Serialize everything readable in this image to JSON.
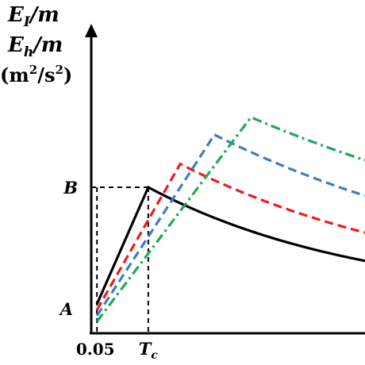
{
  "chart_data": {
    "type": "line",
    "title": "",
    "ylabel_lines": [
      {
        "var": "E",
        "sub": "I",
        "unit": "/m"
      },
      {
        "var": "E",
        "sub": "h",
        "unit": "/m"
      },
      {
        "text": "(m",
        "sup1": "2",
        "mid": "/s",
        "sup2": "2",
        "end": ")"
      }
    ],
    "x_ticks": [
      {
        "value": 0.05,
        "label": "0.05",
        "italic": false
      },
      {
        "value": 0.5,
        "label_var": "T",
        "label_sub": "c",
        "italic": true
      }
    ],
    "y_ticks": [
      {
        "value": 0.0,
        "label": "A"
      },
      {
        "value": 1.0,
        "label": "B"
      }
    ],
    "xlim": [
      0.0,
      2.4
    ],
    "ylim": [
      -0.25,
      2.4
    ],
    "grid": false,
    "legend": "none",
    "reference_lines": {
      "color": "#000000",
      "vertical_at_x": [
        0.05,
        0.5
      ],
      "horizontal_at_y": 1.0
    },
    "series": [
      {
        "color": "#000000",
        "dash": "solid",
        "start": [
          0.05,
          0.0
        ],
        "peak": [
          0.5,
          1.0
        ],
        "decay_factor_at_end": 0.37
      },
      {
        "color": "#ee1c1c",
        "dash": "dashed",
        "start": [
          0.05,
          -0.05
        ],
        "peak": [
          0.78,
          1.2
        ],
        "decay_factor_at_end": 0.51
      },
      {
        "color": "#3a7fc2",
        "dash": "dashed",
        "start": [
          0.05,
          -0.1
        ],
        "peak": [
          1.08,
          1.45
        ],
        "decay_factor_at_end": 0.64
      },
      {
        "color": "#1aaa55",
        "dash": "dashdot",
        "start": [
          0.05,
          -0.15
        ],
        "peak": [
          1.4,
          1.6
        ],
        "decay_factor_at_end": 0.77
      }
    ]
  }
}
